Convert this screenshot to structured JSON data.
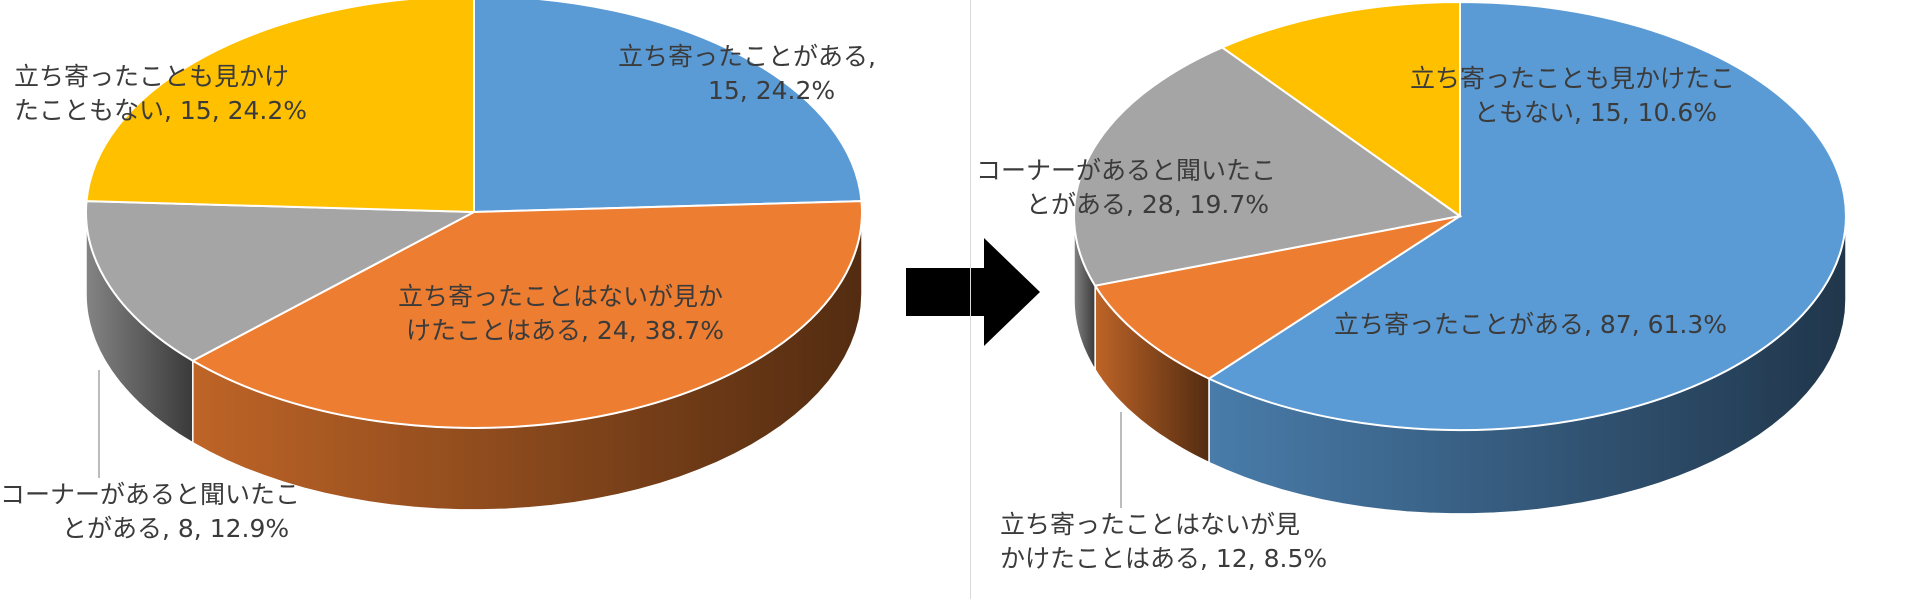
{
  "colors": {
    "blue": "#5b9bd5",
    "orange": "#ed7d31",
    "gray": "#a5a5a5",
    "yellow": "#ffc000",
    "arrow": "#000000"
  },
  "chart_data": [
    {
      "type": "pie",
      "title": "",
      "slices": [
        {
          "label_lines": [
            "立ち寄ったことがある,",
            ""
          ],
          "value": 15,
          "percent": "24.2%",
          "color": "#5b9bd5"
        },
        {
          "label_lines": [
            "立ち寄ったことはないが見か",
            "けたことはある,"
          ],
          "value": 24,
          "percent": "38.7%",
          "color": "#ed7d31"
        },
        {
          "label_lines": [
            "コーナーがあると聞いたこ",
            "とがある,"
          ],
          "value": 8,
          "percent": "12.9%",
          "color": "#a5a5a5"
        },
        {
          "label_lines": [
            "立ち寄ったことも見かけ",
            "たこともない,"
          ],
          "value": 15,
          "percent": "24.2%",
          "color": "#ffc000"
        }
      ]
    },
    {
      "type": "pie",
      "title": "",
      "slices": [
        {
          "label_lines": [
            "",
            "立ち寄ったことがある,"
          ],
          "value": 87,
          "percent": "61.3%",
          "color": "#5b9bd5"
        },
        {
          "label_lines": [
            "立ち寄ったことはないが見",
            "かけたことはある,"
          ],
          "value": 12,
          "percent": "8.5%",
          "color": "#ed7d31"
        },
        {
          "label_lines": [
            "コーナーがあると聞いたこ",
            "とがある,"
          ],
          "value": 28,
          "percent": "19.7%",
          "color": "#a5a5a5"
        },
        {
          "label_lines": [
            "立ち寄ったことも見かけたこ",
            "ともない,"
          ],
          "value": 15,
          "percent": "10.6%",
          "color": "#ffc000"
        }
      ]
    }
  ],
  "labels": {
    "left": {
      "blue": {
        "line1": "立ち寄ったことがある,",
        "line2": "15, 24.2%"
      },
      "orange": {
        "line1": "立ち寄ったことはないが見か",
        "line2": "けたことはある, 24, 38.7%"
      },
      "gray": {
        "line1": "コーナーがあると聞いたこ",
        "line2": "とがある, 8, 12.9%"
      },
      "yellow": {
        "line1": "立ち寄ったことも見かけ",
        "line2": "たこともない, 15, 24.2%"
      }
    },
    "right": {
      "blue": {
        "line1": "立ち寄ったことがある, 87, 61.3%"
      },
      "orange": {
        "line1": "立ち寄ったことはないが見",
        "line2": "かけたことはある, 12, 8.5%"
      },
      "gray": {
        "line1": "コーナーがあると聞いたこ",
        "line2": "とがある, 28, 19.7%"
      },
      "yellow": {
        "line1": "立ち寄ったことも見かけたこ",
        "line2": "ともない, 15, 10.6%"
      }
    }
  }
}
